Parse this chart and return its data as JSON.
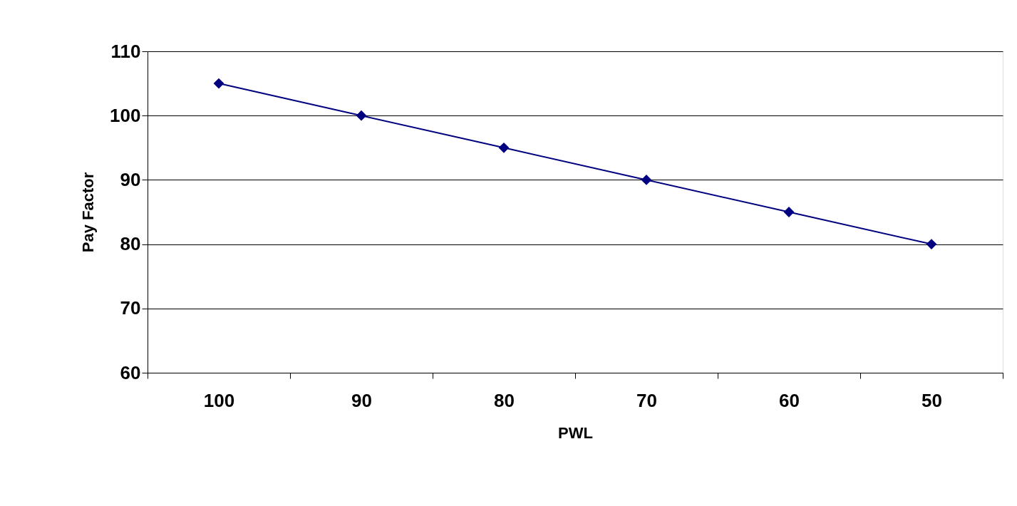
{
  "chart_data": {
    "type": "line",
    "xlabel": "PWL",
    "ylabel": "Pay Factor",
    "categories": [
      "100",
      "90",
      "80",
      "70",
      "60",
      "50"
    ],
    "series": [
      {
        "color": "#000080",
        "values": [
          105,
          100,
          95,
          90,
          85,
          80
        ]
      }
    ],
    "ylim": [
      60,
      110
    ],
    "yticks": [
      60,
      70,
      80,
      90,
      100,
      110
    ],
    "grid": "y",
    "marker": "diamond",
    "line_style": "solid"
  }
}
